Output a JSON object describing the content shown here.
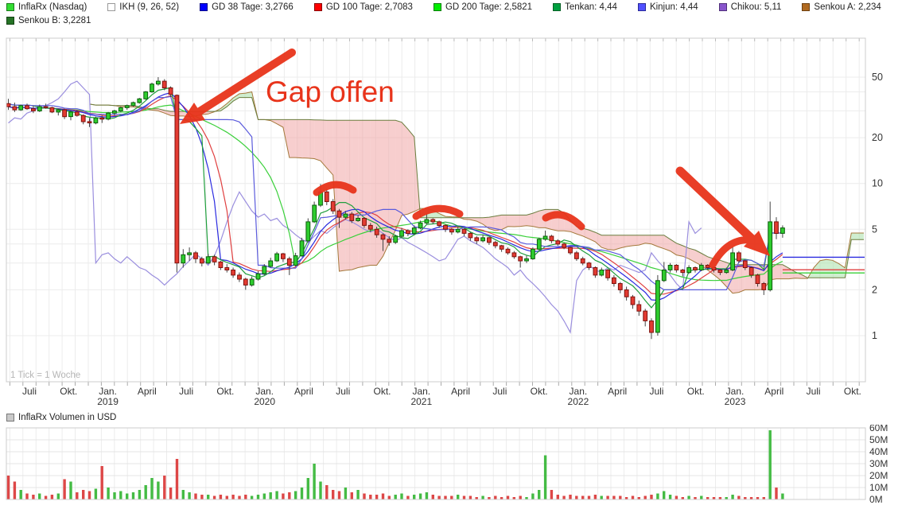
{
  "legend": {
    "items": [
      {
        "label": "InflaRx (Nasdaq)",
        "color": "#33dd33",
        "border": "#1a7a1a"
      },
      {
        "label": "IKH (9, 26, 52)",
        "color": "#ffffff",
        "border": "#999999"
      },
      {
        "label": "GD 38 Tage: 3,2766",
        "color": "#0000ff",
        "border": "#000088"
      },
      {
        "label": "GD 100 Tage: 2,7083",
        "color": "#ff0000",
        "border": "#880000"
      },
      {
        "label": "GD 200 Tage: 2,5821",
        "color": "#00ee00",
        "border": "#0a7a0a"
      },
      {
        "label": "Tenkan: 4,44",
        "color": "#00a040",
        "border": "#056025"
      },
      {
        "label": "Kinjun: 4,44",
        "color": "#5050ff",
        "border": "#2a2a99"
      },
      {
        "label": "Chikou: 5,11",
        "color": "#8855cc",
        "border": "#50307a"
      },
      {
        "label": "Senkou A: 2,234",
        "color": "#b06a20",
        "border": "#6e4112"
      },
      {
        "label": "Senkou B: 3,2281",
        "color": "#267326",
        "border": "#134213"
      }
    ]
  },
  "annotations": {
    "gap_text": "Gap offen",
    "accent_color": "#e8341b",
    "tick_note": "1 Tick = 1 Woche"
  },
  "volume": {
    "title": "InflaRx Volumen in USD",
    "y_ticks": [
      "60M",
      "50M",
      "40M",
      "30M",
      "20M",
      "10M",
      "0M"
    ]
  },
  "chart_data": {
    "type": "candlestick",
    "instrument": "InflaRx (Nasdaq)",
    "timeframe": "1 Tick = 1 Woche",
    "y_axis": {
      "scale": "log",
      "ticks": [
        50,
        20,
        10,
        5,
        2,
        1
      ],
      "minor_gridlines": [
        40,
        30,
        4,
        3
      ]
    },
    "x_axis": {
      "labels": [
        {
          "t": "Juli"
        },
        {
          "t": "Okt."
        },
        {
          "t": "Jan.",
          "year": "2019"
        },
        {
          "t": "April"
        },
        {
          "t": "Juli"
        },
        {
          "t": "Okt."
        },
        {
          "t": "Jan.",
          "year": "2020"
        },
        {
          "t": "April"
        },
        {
          "t": "Juli"
        },
        {
          "t": "Okt."
        },
        {
          "t": "Jan.",
          "year": "2021"
        },
        {
          "t": "April"
        },
        {
          "t": "Juli"
        },
        {
          "t": "Okt."
        },
        {
          "t": "Jan.",
          "year": "2022"
        },
        {
          "t": "April"
        },
        {
          "t": "Juli"
        },
        {
          "t": "Okt."
        },
        {
          "t": "Jan.",
          "year": "2023"
        },
        {
          "t": "April"
        },
        {
          "t": "Juli"
        },
        {
          "t": "Okt."
        }
      ]
    },
    "indicators": {
      "ikh_params": "9, 26, 52",
      "gd38": 3.2766,
      "gd100": 2.7083,
      "gd200": 2.5821,
      "tenkan": 4.44,
      "kinjun": 4.44,
      "chikou": 5.11,
      "senkou_a": 2.234,
      "senkou_b": 3.2281
    },
    "volume_unit": "USD millions",
    "candles": [
      [
        33.5,
        36,
        30.5,
        32,
        20
      ],
      [
        32,
        34,
        29.5,
        30.5,
        15
      ],
      [
        30.5,
        33,
        30,
        32.5,
        8
      ],
      [
        32.5,
        33.5,
        30.5,
        31,
        5
      ],
      [
        31,
        32.5,
        29,
        30,
        4
      ],
      [
        30,
        33,
        29.5,
        32,
        5
      ],
      [
        32,
        33.5,
        31,
        31.5,
        3
      ],
      [
        31.5,
        32,
        29,
        29.5,
        4
      ],
      [
        29.5,
        31,
        28,
        30.5,
        5
      ],
      [
        30.5,
        31,
        26.5,
        27.5,
        17
      ],
      [
        27.5,
        30,
        26,
        29.5,
        15
      ],
      [
        29.5,
        30.5,
        27.5,
        28,
        6
      ],
      [
        28,
        28.5,
        24.5,
        25.5,
        8
      ],
      [
        25.5,
        27,
        23.5,
        25,
        7
      ],
      [
        25,
        27.5,
        24.5,
        27,
        9
      ],
      [
        27,
        28,
        25,
        26.5,
        28
      ],
      [
        26.5,
        29.5,
        26,
        29,
        10
      ],
      [
        29,
        30.5,
        28,
        30,
        6
      ],
      [
        30,
        32,
        29.5,
        31.5,
        7
      ],
      [
        31.5,
        33,
        30.5,
        32.5,
        5
      ],
      [
        32.5,
        34.5,
        32,
        34,
        6
      ],
      [
        34,
        36.5,
        33.5,
        36,
        8
      ],
      [
        36,
        40.5,
        35.5,
        40,
        12
      ],
      [
        40,
        46,
        39.5,
        45,
        18
      ],
      [
        45,
        50,
        44,
        47,
        15
      ],
      [
        47,
        48.5,
        41,
        42.5,
        20
      ],
      [
        42.5,
        43.5,
        37,
        38.5,
        10
      ],
      [
        38,
        38.5,
        2.6,
        3,
        34
      ],
      [
        3,
        3.7,
        2.8,
        3.4,
        8
      ],
      [
        3.4,
        3.8,
        3.1,
        3.5,
        6
      ],
      [
        3.5,
        3.6,
        3,
        3.2,
        5
      ],
      [
        3.2,
        3.3,
        2.85,
        3,
        4
      ],
      [
        3,
        3.45,
        2.95,
        3.3,
        4
      ],
      [
        3.3,
        3.4,
        2.9,
        3.05,
        3
      ],
      [
        3.05,
        3.1,
        2.7,
        2.8,
        4
      ],
      [
        2.8,
        2.95,
        2.6,
        2.7,
        3
      ],
      [
        2.7,
        2.8,
        2.4,
        2.5,
        4
      ],
      [
        2.5,
        2.6,
        2.25,
        2.35,
        3
      ],
      [
        2.35,
        2.4,
        2,
        2.15,
        4
      ],
      [
        2.15,
        2.45,
        2.1,
        2.35,
        3
      ],
      [
        2.35,
        2.65,
        2.3,
        2.55,
        4
      ],
      [
        2.55,
        2.95,
        2.5,
        2.85,
        5
      ],
      [
        2.85,
        3.25,
        2.8,
        3.1,
        6
      ],
      [
        3.1,
        3.55,
        3.05,
        3.45,
        7
      ],
      [
        3.45,
        3.5,
        3.05,
        3.2,
        5
      ],
      [
        3.2,
        3.3,
        2.5,
        2.9,
        6
      ],
      [
        2.9,
        3.5,
        2.85,
        3.35,
        7
      ],
      [
        3.35,
        4.4,
        3.3,
        4.2,
        10
      ],
      [
        4.2,
        5.9,
        4.1,
        5.6,
        18
      ],
      [
        5.6,
        7.6,
        5.5,
        7.2,
        30
      ],
      [
        7.2,
        9.9,
        7,
        8.8,
        15
      ],
      [
        8.8,
        9.2,
        7.2,
        7.6,
        12
      ],
      [
        7.6,
        7.9,
        6.3,
        6.6,
        8
      ],
      [
        6.6,
        6.8,
        5.1,
        6,
        7
      ],
      [
        6,
        6.6,
        5.8,
        6.3,
        10
      ],
      [
        6.3,
        6.5,
        5.5,
        5.7,
        6
      ],
      [
        5.7,
        6.2,
        5.6,
        5.9,
        8
      ],
      [
        5.9,
        6,
        5.1,
        5.3,
        5
      ],
      [
        5.3,
        5.5,
        4.8,
        5,
        4
      ],
      [
        5,
        5.2,
        4.4,
        4.6,
        4
      ],
      [
        4.6,
        4.7,
        3.6,
        4.3,
        5
      ],
      [
        4.3,
        4.5,
        3.9,
        4.1,
        3
      ],
      [
        4.1,
        4.6,
        4,
        4.5,
        4
      ],
      [
        4.5,
        5.1,
        4.4,
        4.9,
        5
      ],
      [
        4.9,
        5,
        4.5,
        4.7,
        3
      ],
      [
        4.7,
        5.3,
        4.6,
        5.1,
        4
      ],
      [
        5.1,
        5.7,
        5,
        5.5,
        5
      ],
      [
        5.5,
        6.35,
        5.4,
        5.8,
        6
      ],
      [
        5.8,
        5.9,
        5.4,
        5.6,
        4
      ],
      [
        5.6,
        5.7,
        5.1,
        5.3,
        3
      ],
      [
        5.3,
        5.4,
        4.8,
        5,
        3
      ],
      [
        5,
        5.1,
        4.6,
        4.8,
        3
      ],
      [
        4.8,
        5.2,
        4.7,
        5,
        4
      ],
      [
        5,
        5.05,
        4.5,
        4.7,
        3
      ],
      [
        4.7,
        4.8,
        4.2,
        4.4,
        3
      ],
      [
        4.4,
        4.5,
        4,
        4.2,
        2
      ],
      [
        4.2,
        4.6,
        4.1,
        4.4,
        3
      ],
      [
        4.4,
        4.45,
        3.95,
        4.1,
        2
      ],
      [
        4.1,
        4.2,
        3.75,
        3.9,
        3
      ],
      [
        3.9,
        3.95,
        3.55,
        3.7,
        2
      ],
      [
        3.7,
        3.8,
        3.4,
        3.5,
        3
      ],
      [
        3.5,
        3.6,
        3.2,
        3.3,
        2
      ],
      [
        3.3,
        3.35,
        2.8,
        3.1,
        3
      ],
      [
        3.1,
        3.35,
        3,
        3.2,
        2
      ],
      [
        3.2,
        3.8,
        3.15,
        3.7,
        5
      ],
      [
        3.7,
        4.4,
        3.6,
        4.3,
        8
      ],
      [
        4.3,
        4.9,
        4.2,
        4.5,
        37
      ],
      [
        4.5,
        4.6,
        4.05,
        4.2,
        8
      ],
      [
        4.2,
        4.3,
        3.9,
        4,
        4
      ],
      [
        4,
        4.1,
        3.7,
        3.8,
        3
      ],
      [
        3.8,
        3.85,
        3.4,
        3.5,
        4
      ],
      [
        3.5,
        3.6,
        3.1,
        3.2,
        3
      ],
      [
        3.2,
        3.3,
        2.9,
        3,
        3
      ],
      [
        3,
        3.05,
        2.7,
        2.8,
        3
      ],
      [
        2.8,
        2.85,
        2.4,
        2.5,
        4
      ],
      [
        2.5,
        2.8,
        2.45,
        2.7,
        3
      ],
      [
        2.7,
        2.75,
        2.3,
        2.4,
        3
      ],
      [
        2.4,
        2.5,
        2.1,
        2.2,
        3
      ],
      [
        2.2,
        2.25,
        1.9,
        2,
        3
      ],
      [
        2,
        2.1,
        1.7,
        1.8,
        2
      ],
      [
        1.8,
        1.85,
        1.5,
        1.6,
        3
      ],
      [
        1.6,
        1.7,
        1.35,
        1.45,
        2
      ],
      [
        1.45,
        1.5,
        1.15,
        1.25,
        3
      ],
      [
        1.25,
        1.3,
        0.95,
        1.05,
        4
      ],
      [
        1.05,
        2.5,
        1,
        2.3,
        5
      ],
      [
        2.3,
        3.05,
        2.25,
        2.7,
        7
      ],
      [
        2.7,
        3,
        2.6,
        2.9,
        4
      ],
      [
        2.9,
        2.95,
        2.6,
        2.7,
        3
      ],
      [
        2.7,
        2.75,
        2.45,
        2.6,
        2
      ],
      [
        2.6,
        2.9,
        2.55,
        2.8,
        3
      ],
      [
        2.8,
        2.85,
        2.6,
        2.7,
        2
      ],
      [
        2.7,
        3,
        2.65,
        2.9,
        3
      ],
      [
        2.9,
        2.95,
        2.7,
        2.8,
        2
      ],
      [
        2.8,
        2.85,
        2.6,
        2.7,
        2
      ],
      [
        2.7,
        2.75,
        2.5,
        2.6,
        2
      ],
      [
        2.6,
        2.8,
        2.55,
        2.7,
        2
      ],
      [
        2.7,
        3.85,
        2.65,
        3.5,
        4
      ],
      [
        3.5,
        3.6,
        3,
        3.1,
        3
      ],
      [
        3.1,
        3.15,
        2.7,
        2.8,
        2
      ],
      [
        2.8,
        2.85,
        2.4,
        2.5,
        2
      ],
      [
        2.5,
        2.55,
        2.1,
        2.2,
        2
      ],
      [
        2.2,
        2.25,
        1.85,
        2,
        2
      ],
      [
        2,
        7.6,
        1.95,
        5.6,
        58
      ],
      [
        5.6,
        6,
        4.3,
        4.7,
        10
      ],
      [
        4.7,
        5.3,
        4.4,
        5.1,
        5
      ]
    ],
    "colors": {
      "up": "#2ecc2e",
      "up_border": "#0b5d0b",
      "down": "#e33b32",
      "down_border": "#7e120d",
      "wick": "#444444",
      "gd38": "#2a2ae0",
      "gd100": "#e04040",
      "gd200": "#3ad03a",
      "tenkan": "#1f9e3c",
      "kinjun": "#5b5bdc",
      "chikou": "#9a8ede",
      "senkou_a_edge": "#a5793c",
      "senkou_b_edge": "#6b7d3e",
      "cloud_bear": "rgba(240,158,158,0.5)",
      "cloud_bull": "rgba(168,224,168,0.55)",
      "vol_up": "#44bb44",
      "vol_down": "#dd4747",
      "grid": "#ececec",
      "border": "#cccccc",
      "axis_text": "#333333",
      "muted_text": "#b5b5b5"
    }
  }
}
